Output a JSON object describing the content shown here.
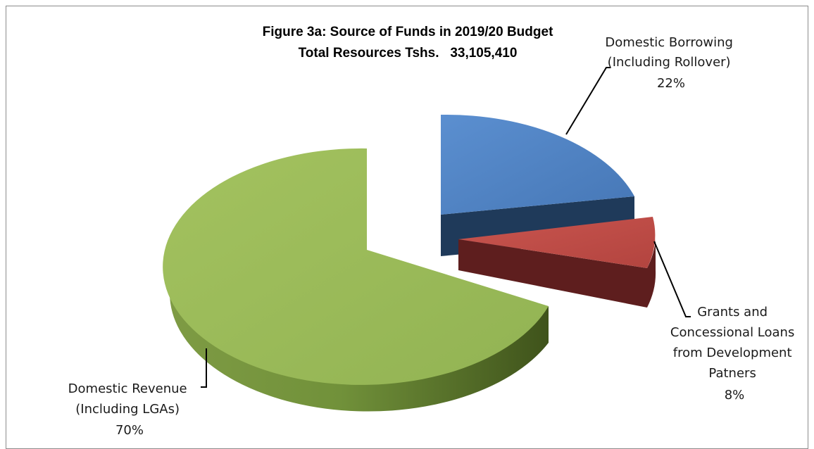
{
  "chart_data": {
    "type": "pie",
    "title": "Figure 3a: Source of Funds in 2019/20 Budget",
    "subtitle": "Total Resources Tshs.   33,105,410",
    "slices": [
      {
        "label_lines": [
          "Domestic Borrowing",
          "(Including Rollover)"
        ],
        "percent_label": "22%",
        "value": 22,
        "color": "#4F81BD",
        "side_color": "#1F3A5A"
      },
      {
        "label_lines": [
          "Grants and",
          "Concessional Loans",
          "from Development",
          "Patners"
        ],
        "percent_label": "8%",
        "value": 8,
        "color": "#C0504D",
        "side_color": "#5E1E1E"
      },
      {
        "label_lines": [
          "Domestic Revenue",
          "(Including LGAs)"
        ],
        "percent_label": "70%",
        "value": 70,
        "color": "#9BBB59",
        "side_color": "#5E7A2C"
      }
    ]
  }
}
